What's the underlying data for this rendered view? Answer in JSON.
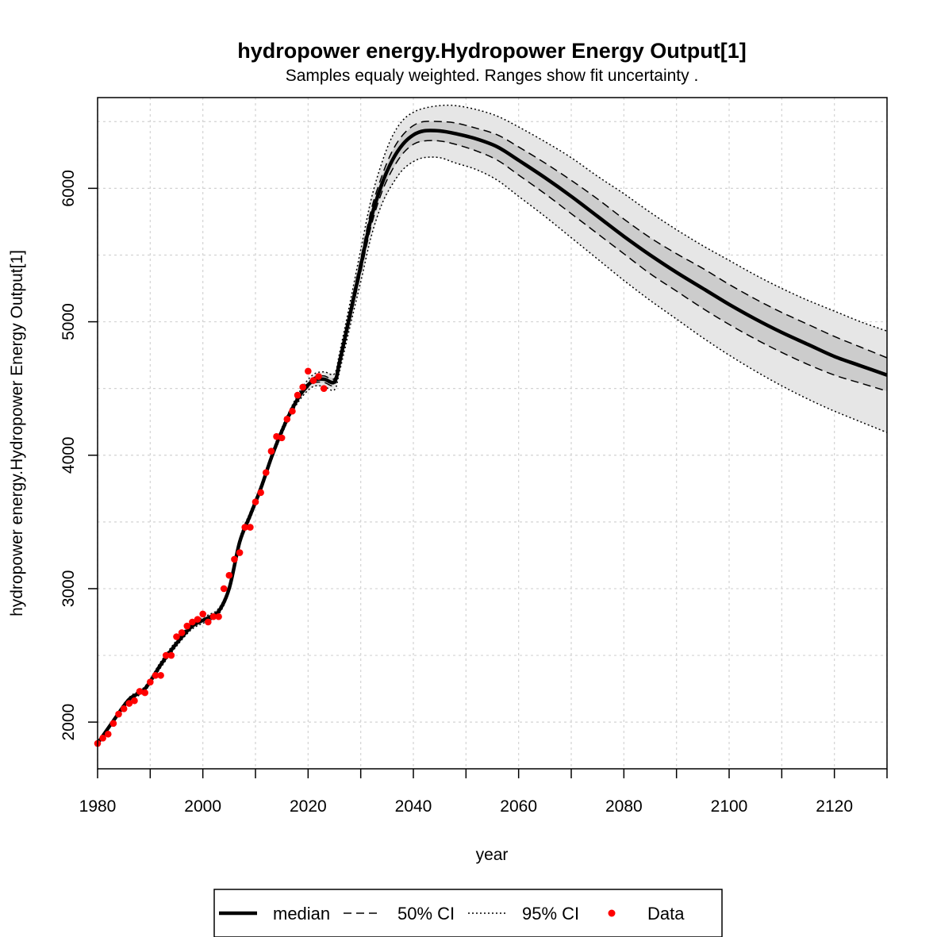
{
  "chart_data": {
    "type": "line",
    "title": "hydropower energy.Hydropower Energy Output[1]",
    "subtitle": "Samples equaly weighted. Ranges show  fit uncertainty .",
    "xlabel": "year",
    "ylabel": "hydropower energy.Hydropower Energy Output[1]",
    "xlim": [
      1980,
      2130
    ],
    "ylim": [
      1650,
      6680
    ],
    "x_ticks": [
      1980,
      2000,
      2020,
      2040,
      2060,
      2080,
      2100,
      2120
    ],
    "y_ticks": [
      2000,
      3000,
      4000,
      5000,
      6000
    ],
    "grid": true,
    "legend_position": "bottom",
    "legend": [
      {
        "label": "median",
        "style": "solid-thick"
      },
      {
        "label": "50% CI",
        "style": "dashed"
      },
      {
        "label": "95% CI",
        "style": "dotted"
      },
      {
        "label": "Data",
        "style": "point"
      }
    ],
    "colors": {
      "median": "#000000",
      "data": "#ff0000",
      "band95": "#e6e6e6",
      "band50": "#cccccc"
    },
    "series": [
      {
        "name": "median",
        "x": [
          1980,
          1983,
          1986,
          1989,
          1992,
          1995,
          1998,
          2001,
          2003,
          2005,
          2007,
          2009,
          2011,
          2013,
          2015,
          2017,
          2019,
          2021,
          2023,
          2025,
          2026,
          2028,
          2030,
          2032,
          2034,
          2036,
          2038,
          2040,
          2042,
          2045,
          2048,
          2052,
          2056,
          2060,
          2065,
          2070,
          2075,
          2080,
          2085,
          2090,
          2095,
          2100,
          2105,
          2110,
          2115,
          2120,
          2125,
          2130
        ],
        "y": [
          1840,
          2010,
          2170,
          2250,
          2430,
          2590,
          2720,
          2780,
          2830,
          3000,
          3350,
          3550,
          3750,
          3980,
          4180,
          4350,
          4480,
          4560,
          4570,
          4550,
          4700,
          5060,
          5420,
          5780,
          6030,
          6210,
          6330,
          6400,
          6430,
          6430,
          6410,
          6370,
          6310,
          6210,
          6080,
          5940,
          5790,
          5640,
          5500,
          5370,
          5250,
          5130,
          5020,
          4920,
          4830,
          4740,
          4670,
          4600
        ]
      },
      {
        "name": "50% CI",
        "x": [
          1980,
          1983,
          1986,
          1989,
          1992,
          1995,
          1998,
          2001,
          2003,
          2005,
          2007,
          2009,
          2011,
          2013,
          2015,
          2017,
          2019,
          2021,
          2023,
          2025,
          2026,
          2028,
          2030,
          2032,
          2034,
          2036,
          2038,
          2040,
          2042,
          2045,
          2048,
          2052,
          2056,
          2060,
          2065,
          2070,
          2075,
          2080,
          2085,
          2090,
          2095,
          2100,
          2105,
          2110,
          2115,
          2120,
          2125,
          2130
        ],
        "lower": [
          1838,
          2005,
          2163,
          2242,
          2420,
          2580,
          2710,
          2770,
          2820,
          2990,
          3340,
          3540,
          3740,
          3970,
          4170,
          4340,
          4465,
          4540,
          4545,
          4525,
          4670,
          5020,
          5370,
          5720,
          5970,
          6140,
          6260,
          6330,
          6355,
          6355,
          6330,
          6280,
          6210,
          6100,
          5960,
          5810,
          5660,
          5510,
          5360,
          5230,
          5100,
          4980,
          4870,
          4770,
          4680,
          4600,
          4540,
          4480
        ],
        "upper": [
          1842,
          2015,
          2177,
          2258,
          2440,
          2600,
          2730,
          2790,
          2840,
          3010,
          3360,
          3560,
          3760,
          3990,
          4190,
          4360,
          4495,
          4580,
          4595,
          4575,
          4730,
          5100,
          5470,
          5840,
          6090,
          6280,
          6400,
          6470,
          6500,
          6500,
          6490,
          6450,
          6400,
          6310,
          6190,
          6060,
          5920,
          5770,
          5630,
          5510,
          5400,
          5280,
          5170,
          5070,
          4980,
          4890,
          4810,
          4730
        ]
      },
      {
        "name": "95% CI",
        "x": [
          1980,
          1983,
          1986,
          1989,
          1992,
          1995,
          1998,
          2001,
          2003,
          2005,
          2007,
          2009,
          2011,
          2013,
          2015,
          2017,
          2019,
          2021,
          2023,
          2025,
          2026,
          2028,
          2030,
          2032,
          2034,
          2036,
          2038,
          2040,
          2042,
          2045,
          2048,
          2052,
          2056,
          2060,
          2065,
          2070,
          2075,
          2080,
          2085,
          2090,
          2095,
          2100,
          2105,
          2110,
          2115,
          2120,
          2125,
          2130
        ],
        "lower": [
          1835,
          1998,
          2155,
          2233,
          2408,
          2568,
          2698,
          2758,
          2808,
          2978,
          3325,
          3525,
          3725,
          3955,
          4155,
          4325,
          4445,
          4515,
          4515,
          4490,
          4630,
          4970,
          5300,
          5640,
          5880,
          6030,
          6140,
          6200,
          6230,
          6230,
          6190,
          6140,
          6060,
          5940,
          5790,
          5630,
          5470,
          5310,
          5160,
          5020,
          4880,
          4750,
          4630,
          4520,
          4420,
          4330,
          4250,
          4170
        ],
        "upper": [
          1845,
          2022,
          2185,
          2267,
          2452,
          2612,
          2742,
          2802,
          2852,
          3022,
          3375,
          3575,
          3775,
          4005,
          4205,
          4375,
          4515,
          4605,
          4625,
          4610,
          4770,
          5150,
          5540,
          5920,
          6190,
          6390,
          6510,
          6570,
          6600,
          6620,
          6620,
          6590,
          6540,
          6460,
          6350,
          6230,
          6090,
          5960,
          5820,
          5690,
          5570,
          5460,
          5350,
          5250,
          5160,
          5080,
          5000,
          4930
        ]
      },
      {
        "name": "Data",
        "x": [
          1980,
          1981,
          1982,
          1983,
          1984,
          1985,
          1986,
          1987,
          1988,
          1989,
          1990,
          1991,
          1992,
          1993,
          1994,
          1995,
          1996,
          1997,
          1998,
          1999,
          2000,
          2001,
          2002,
          2003,
          2004,
          2005,
          2006,
          2007,
          2008,
          2009,
          2010,
          2011,
          2012,
          2013,
          2014,
          2015,
          2016,
          2017,
          2018,
          2019,
          2020,
          2021,
          2022,
          2023
        ],
        "y": [
          1840,
          1880,
          1910,
          1990,
          2060,
          2100,
          2140,
          2160,
          2230,
          2220,
          2300,
          2350,
          2350,
          2500,
          2500,
          2640,
          2670,
          2720,
          2750,
          2770,
          2810,
          2750,
          2790,
          2790,
          3000,
          3100,
          3220,
          3270,
          3460,
          3460,
          3650,
          3720,
          3870,
          4030,
          4140,
          4130,
          4270,
          4330,
          4450,
          4510,
          4630,
          4560,
          4590,
          4500
        ]
      }
    ]
  }
}
